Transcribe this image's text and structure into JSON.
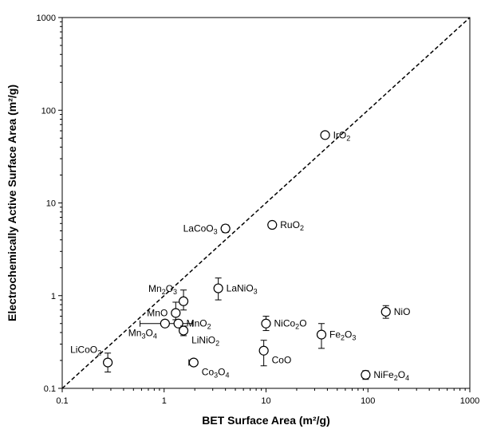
{
  "chart_data": {
    "type": "scatter",
    "x_scale": "log",
    "y_scale": "log",
    "xlim": [
      0.1,
      1000
    ],
    "ylim": [
      0.1,
      1000
    ],
    "xlabel": "BET Surface Area (m²/g)",
    "ylabel": "Electrochemically Active Surface Area (m²/g)",
    "x_ticks": [
      "0.1",
      "1",
      "10",
      "100",
      "1000"
    ],
    "y_ticks": [
      "0.1",
      "1",
      "10",
      "100",
      "1000"
    ],
    "grid": false,
    "legend": "none",
    "reference_line": {
      "style": "dashed",
      "from": [
        0.1,
        0.1
      ],
      "to": [
        1000,
        1000
      ]
    },
    "points": [
      {
        "label": "IrO",
        "sub": "2",
        "suffix": "",
        "x": 38,
        "y": 54,
        "err_low": 50,
        "err_high": 58,
        "xerr_low": null,
        "xerr_high": null,
        "label_pos": "right"
      },
      {
        "label": "RuO",
        "sub": "2",
        "suffix": "",
        "x": 11.5,
        "y": 5.8,
        "err_low": 5.5,
        "err_high": 6.2,
        "xerr_low": null,
        "xerr_high": null,
        "label_pos": "right"
      },
      {
        "label": "LaCoO",
        "sub": "3",
        "suffix": "",
        "x": 4.0,
        "y": 5.3,
        "err_low": 4.8,
        "err_high": 5.8,
        "xerr_low": null,
        "xerr_high": null,
        "label_pos": "left"
      },
      {
        "label": "LaNiO",
        "sub": "3",
        "suffix": "",
        "x": 3.4,
        "y": 1.2,
        "err_low": 0.9,
        "err_high": 1.55,
        "xerr_low": null,
        "xerr_high": null,
        "label_pos": "right"
      },
      {
        "label": "Mn",
        "sub": "2",
        "suffix": "O",
        "sub2": "3",
        "x": 1.55,
        "y": 0.87,
        "err_low": 0.7,
        "err_high": 1.15,
        "xerr_low": null,
        "xerr_high": null,
        "label_pos": "upleft"
      },
      {
        "label": "MnO",
        "sub": "",
        "suffix": "",
        "x": 1.3,
        "y": 0.65,
        "err_low": 0.55,
        "err_high": 0.85,
        "xerr_low": null,
        "xerr_high": null,
        "label_pos": "left"
      },
      {
        "label": "Mn",
        "sub": "3",
        "suffix": "O",
        "sub2": "4",
        "x": 1.02,
        "y": 0.5,
        "err_low": 0.47,
        "err_high": 0.53,
        "xerr_low": 0.58,
        "xerr_high": 1.3,
        "label_pos": "downleft"
      },
      {
        "label": "MnO",
        "sub": "2",
        "suffix": "",
        "x": 1.38,
        "y": 0.5,
        "err_low": 0.46,
        "err_high": 0.54,
        "xerr_low": null,
        "xerr_high": 1.9,
        "label_pos": "right"
      },
      {
        "label": "LiNiO",
        "sub": "2",
        "suffix": "",
        "x": 1.55,
        "y": 0.42,
        "err_low": 0.37,
        "err_high": 0.47,
        "xerr_low": null,
        "xerr_high": null,
        "label_pos": "downright"
      },
      {
        "label": "LiCoO",
        "sub": "2",
        "suffix": "",
        "x": 0.28,
        "y": 0.19,
        "err_low": 0.15,
        "err_high": 0.24,
        "xerr_low": null,
        "xerr_high": null,
        "label_pos": "upleft"
      },
      {
        "label": "Co",
        "sub": "3",
        "suffix": "O",
        "sub2": "4",
        "x": 1.95,
        "y": 0.19,
        "err_low": 0.18,
        "err_high": 0.2,
        "xerr_low": 1.75,
        "xerr_high": null,
        "label_pos": "downright"
      },
      {
        "label": "NiCo",
        "sub": "2",
        "suffix": "O",
        "x": 10.0,
        "y": 0.5,
        "err_low": 0.42,
        "err_high": 0.6,
        "xerr_low": null,
        "xerr_high": null,
        "label_pos": "right"
      },
      {
        "label": "CoO",
        "sub": "",
        "suffix": "",
        "x": 9.5,
        "y": 0.255,
        "err_low": 0.175,
        "err_high": 0.33,
        "xerr_low": null,
        "xerr_high": null,
        "label_pos": "downright"
      },
      {
        "label": "Fe",
        "sub": "2",
        "suffix": "O",
        "sub2": "3",
        "x": 35,
        "y": 0.38,
        "err_low": 0.27,
        "err_high": 0.5,
        "xerr_low": null,
        "xerr_high": null,
        "label_pos": "right"
      },
      {
        "label": "NiO",
        "sub": "",
        "suffix": "",
        "x": 150,
        "y": 0.67,
        "err_low": 0.57,
        "err_high": 0.78,
        "xerr_low": null,
        "xerr_high": null,
        "label_pos": "right"
      },
      {
        "label": "NiFe",
        "sub": "2",
        "suffix": "O",
        "sub2": "4",
        "x": 95,
        "y": 0.14,
        "err_low": 0.125,
        "err_high": 0.155,
        "xerr_low": null,
        "xerr_high": null,
        "label_pos": "right"
      }
    ]
  }
}
